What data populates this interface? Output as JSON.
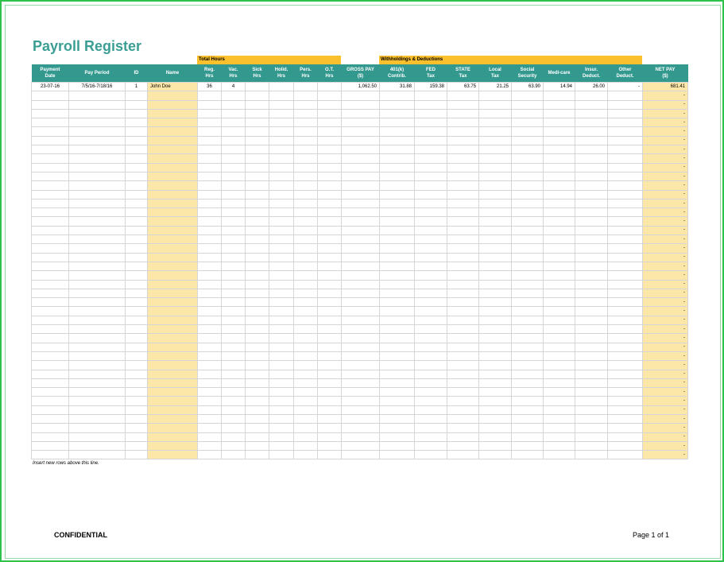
{
  "title": "Payroll Register",
  "groups": {
    "total_hours": "Total Hours",
    "withholdings": "Withholdings & Deductions"
  },
  "columns": [
    [
      "Payment",
      "Date"
    ],
    [
      "",
      "Pay Period"
    ],
    [
      "",
      "ID"
    ],
    [
      "",
      "Name"
    ],
    [
      "Reg.",
      "Hrs"
    ],
    [
      "Vac.",
      "Hrs"
    ],
    [
      "Sick",
      "Hrs"
    ],
    [
      "Holid.",
      "Hrs"
    ],
    [
      "Pers.",
      "Hrs"
    ],
    [
      "O.T.",
      "Hrs"
    ],
    [
      "GROSS PAY",
      "($)"
    ],
    [
      "401(k)",
      "Contrib."
    ],
    [
      "FED",
      "Tax"
    ],
    [
      "STATE",
      "Tax"
    ],
    [
      "Local",
      "Tax"
    ],
    [
      "Social",
      "Security"
    ],
    [
      "",
      "Medi-care"
    ],
    [
      "Insur.",
      "Deduct."
    ],
    [
      "Other",
      "Deduct."
    ],
    [
      "NET PAY",
      "($)"
    ]
  ],
  "rows": [
    [
      "23-07-16",
      "7/5/16-7/18/16",
      "1",
      "John Doe",
      "36",
      "4",
      "",
      "",
      "",
      "",
      "1,062.50",
      "31.88",
      "159.38",
      "63.75",
      "21.25",
      "63.90",
      "14.94",
      "26.00",
      "-",
      "681.41"
    ]
  ],
  "empty_net_value": "-",
  "empty_row_count": 41,
  "note": "Insert new rows above this line.",
  "footer": {
    "left": "CONFIDENTIAL",
    "right": "Page 1 of 1"
  },
  "colors": {
    "header": "#33998f",
    "title": "#3a9e94",
    "group": "#fbc02d",
    "highlight": "#fde7a8",
    "border": "#2fc24a"
  }
}
